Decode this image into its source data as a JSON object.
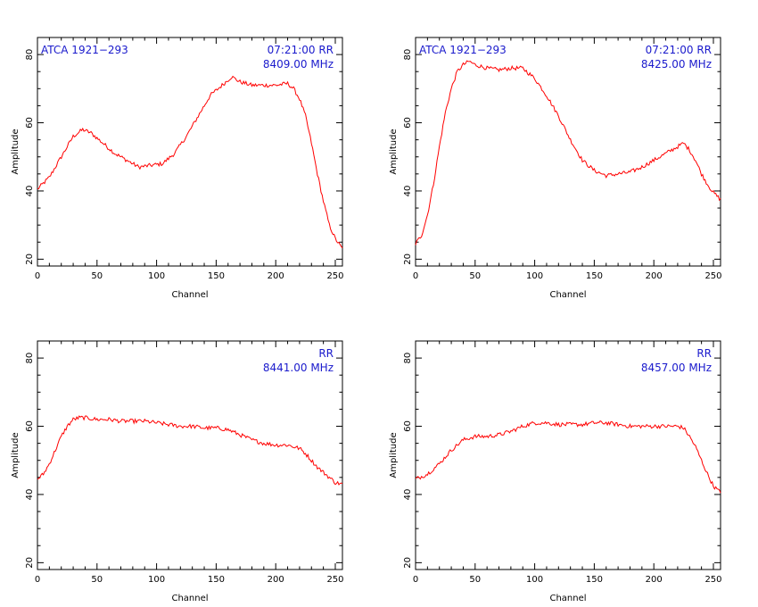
{
  "chart_data": [
    {
      "type": "line",
      "xlabel": "Channel",
      "ylabel": "Amplitude",
      "xlim": [
        0,
        256
      ],
      "ylim": [
        18,
        85
      ],
      "xticks": [
        0,
        50,
        100,
        150,
        200,
        250
      ],
      "yticks": [
        20,
        40,
        60,
        80
      ],
      "annotations": {
        "left": "ATCA 1921−293",
        "right_top": "07:21:00  RR",
        "right_bottom": "8409.00 MHz"
      },
      "series": [
        {
          "color": "#ff0000",
          "x": [
            0,
            10,
            20,
            30,
            38,
            45,
            55,
            65,
            75,
            85,
            95,
            105,
            115,
            125,
            135,
            145,
            155,
            163,
            170,
            180,
            190,
            200,
            210,
            215,
            220,
            225,
            230,
            235,
            240,
            245,
            250,
            256
          ],
          "y": [
            40.5,
            44,
            50,
            56,
            58,
            57,
            54,
            51,
            49,
            47,
            47.5,
            48,
            51,
            56,
            62,
            68,
            71,
            73.5,
            72,
            71,
            71,
            71,
            71.5,
            70,
            67,
            62,
            54,
            45,
            37,
            30,
            26,
            23
          ]
        }
      ]
    },
    {
      "type": "line",
      "xlabel": "Channel",
      "ylabel": "Amplitude",
      "xlim": [
        0,
        256
      ],
      "ylim": [
        18,
        85
      ],
      "xticks": [
        0,
        50,
        100,
        150,
        200,
        250
      ],
      "yticks": [
        20,
        40,
        60,
        80
      ],
      "annotations": {
        "left": "ATCA 1921−293",
        "right_top": "07:21:00  RR",
        "right_bottom": "8425.00 MHz"
      },
      "series": [
        {
          "color": "#ff0000",
          "x": [
            0,
            5,
            10,
            15,
            20,
            25,
            30,
            35,
            40,
            45,
            50,
            60,
            70,
            80,
            90,
            100,
            110,
            120,
            130,
            140,
            150,
            160,
            170,
            180,
            190,
            200,
            210,
            220,
            225,
            230,
            235,
            240,
            245,
            250,
            256
          ],
          "y": [
            24.5,
            27,
            33,
            42,
            53,
            63,
            70,
            75,
            77,
            78,
            77,
            76,
            75.5,
            76,
            76,
            73,
            68,
            62,
            55,
            49,
            46,
            44.5,
            45,
            45.5,
            47,
            49,
            51,
            53,
            54,
            52,
            49,
            45,
            42,
            39.5,
            37.5
          ]
        }
      ]
    },
    {
      "type": "line",
      "xlabel": "Channel",
      "ylabel": "Amplitude",
      "xlim": [
        0,
        256
      ],
      "ylim": [
        18,
        85
      ],
      "xticks": [
        0,
        50,
        100,
        150,
        200,
        250
      ],
      "yticks": [
        20,
        40,
        60,
        80
      ],
      "annotations": {
        "left": "",
        "right_top": "RR",
        "right_bottom": "8441.00 MHz"
      },
      "series": [
        {
          "color": "#ff0000",
          "x": [
            0,
            5,
            10,
            15,
            20,
            25,
            30,
            35,
            40,
            50,
            60,
            70,
            80,
            90,
            100,
            110,
            120,
            130,
            140,
            150,
            160,
            170,
            180,
            190,
            200,
            210,
            220,
            225,
            230,
            235,
            240,
            245,
            250,
            256
          ],
          "y": [
            44.5,
            46,
            49,
            53,
            57,
            60,
            62,
            62.5,
            62.5,
            62,
            62,
            61.5,
            61.5,
            61.5,
            61,
            60.5,
            60,
            60,
            59.5,
            59.5,
            59,
            57.5,
            56,
            55,
            54.5,
            54.5,
            53.5,
            52,
            50,
            48,
            46.5,
            45,
            43.5,
            43
          ]
        }
      ]
    },
    {
      "type": "line",
      "xlabel": "Channel",
      "ylabel": "Amplitude",
      "xlim": [
        0,
        256
      ],
      "ylim": [
        18,
        85
      ],
      "xticks": [
        0,
        50,
        100,
        150,
        200,
        250
      ],
      "yticks": [
        20,
        40,
        60,
        80
      ],
      "annotations": {
        "left": "",
        "right_top": "RR",
        "right_bottom": "8457.00 MHz"
      },
      "series": [
        {
          "color": "#ff0000",
          "x": [
            0,
            10,
            20,
            30,
            40,
            50,
            60,
            70,
            80,
            90,
            100,
            110,
            120,
            130,
            140,
            150,
            160,
            170,
            180,
            190,
            200,
            210,
            220,
            225,
            230,
            235,
            240,
            245,
            250,
            256
          ],
          "y": [
            44.5,
            46,
            49,
            53,
            56,
            57,
            57,
            57.5,
            58.5,
            60,
            61,
            61,
            60.5,
            60.5,
            60.5,
            61,
            61,
            60.5,
            60,
            60,
            60,
            60,
            60,
            59.5,
            57,
            54,
            50,
            46,
            42.5,
            40.5
          ]
        }
      ]
    }
  ]
}
